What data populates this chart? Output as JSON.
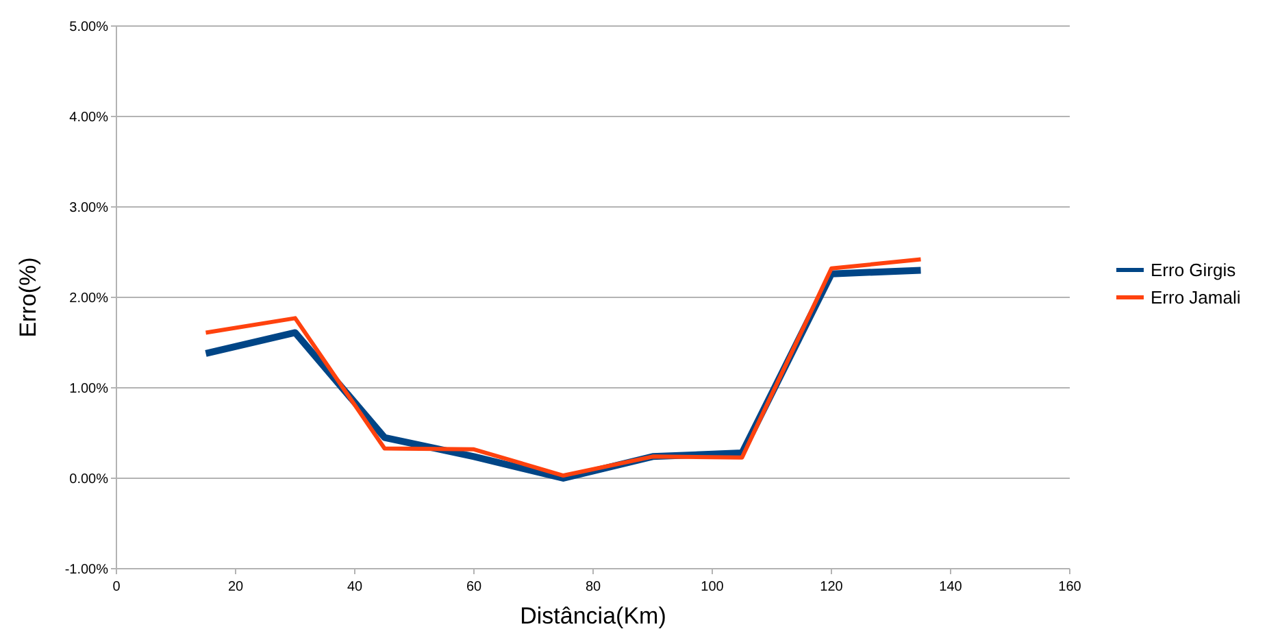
{
  "chart_data": {
    "type": "line",
    "xlabel": "Distância(Km)",
    "ylabel": "Erro(%)",
    "x": [
      15,
      30,
      45,
      60,
      75,
      90,
      105,
      120,
      135
    ],
    "series": [
      {
        "name": "Erro Girgis",
        "color": "#004586",
        "values": [
          1.38,
          1.61,
          0.45,
          0.24,
          0.0,
          0.24,
          0.28,
          2.26,
          2.3
        ]
      },
      {
        "name": "Erro Jamali",
        "color": "#ff420e",
        "values": [
          1.61,
          1.77,
          0.33,
          0.32,
          0.03,
          0.24,
          0.23,
          2.32,
          2.42
        ]
      }
    ],
    "xlim": [
      0,
      160
    ],
    "xticks": [
      0,
      20,
      40,
      60,
      80,
      100,
      120,
      140,
      160
    ],
    "ylim": [
      -1,
      5
    ],
    "yticks": [
      {
        "value": -1,
        "label": "-1.00%"
      },
      {
        "value": 0,
        "label": "0.00%"
      },
      {
        "value": 1,
        "label": "1.00%"
      },
      {
        "value": 2,
        "label": "2.00%"
      },
      {
        "value": 3,
        "label": "3.00%"
      },
      {
        "value": 4,
        "label": "4.00%"
      },
      {
        "value": 5,
        "label": "5.00%"
      }
    ],
    "grid": "y",
    "legend": "right",
    "marker": "none",
    "line_style": "solid"
  }
}
